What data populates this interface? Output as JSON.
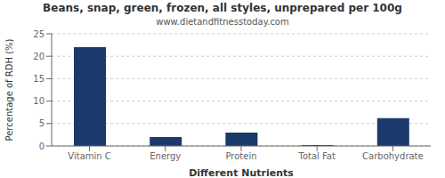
{
  "chart_data": {
    "type": "bar",
    "title": "Beans, snap, green, frozen, all styles, unprepared per 100g",
    "subtitle": "www.dietandfitnesstoday.com",
    "xlabel": "Different Nutrients",
    "ylabel": "Percentage of RDH (%)",
    "categories": [
      "Vitamin C",
      "Energy",
      "Protein",
      "Total Fat",
      "Carbohydrate"
    ],
    "values": [
      22,
      2,
      3,
      0.2,
      6.2
    ],
    "color": "#1a3a6b",
    "ylim": [
      0,
      25
    ],
    "yticks": [
      0,
      5,
      10,
      15,
      20,
      25
    ],
    "grid": true
  }
}
